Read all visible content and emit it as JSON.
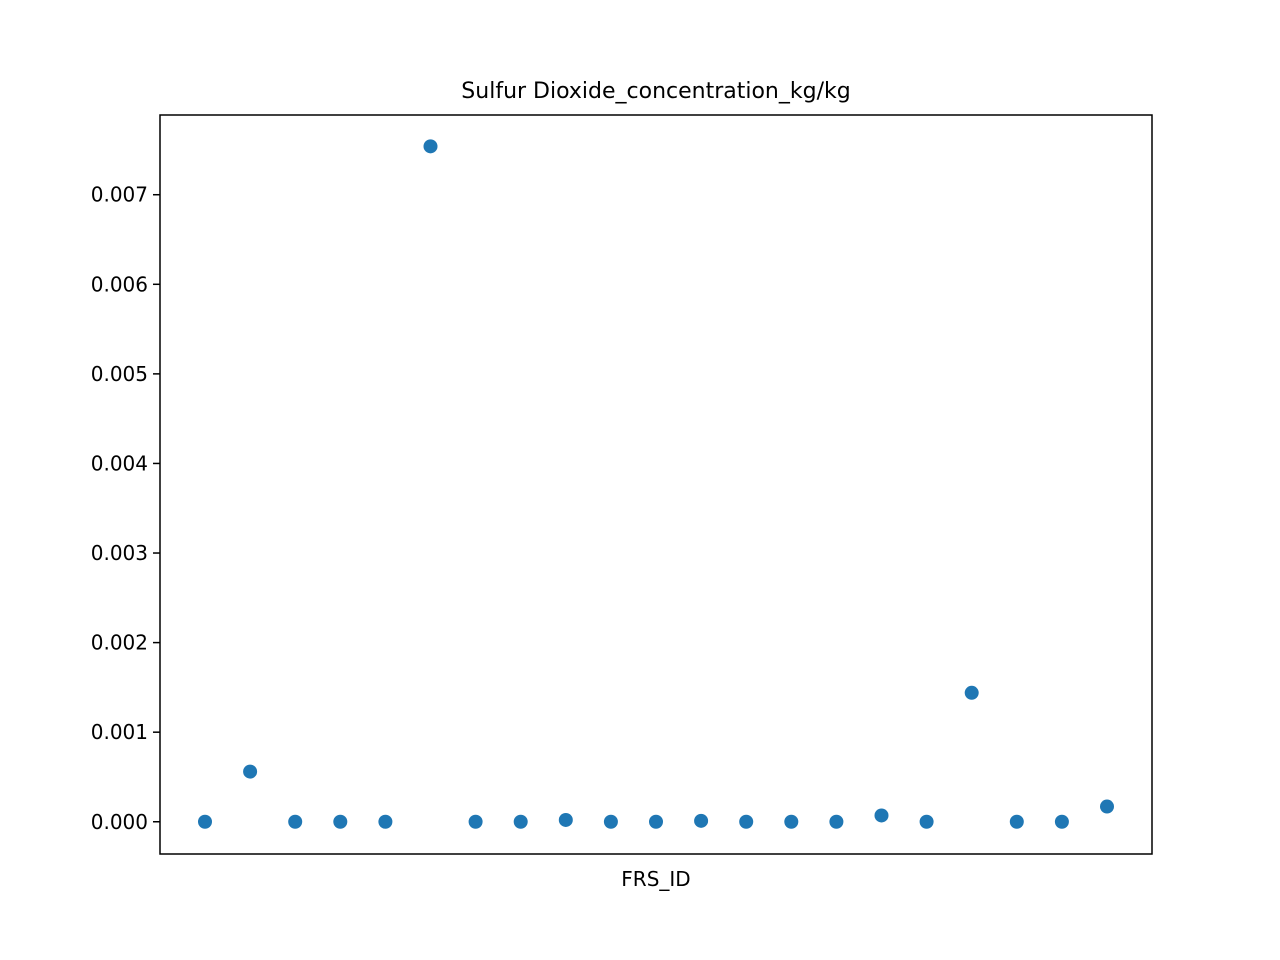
{
  "chart_data": {
    "type": "scatter",
    "title": "Sulfur Dioxide_concentration_kg/kg",
    "xlabel": "FRS_ID",
    "ylabel": "",
    "ylim": [
      -0.00036,
      0.00789
    ],
    "yticks": [
      0.0,
      0.001,
      0.002,
      0.003,
      0.004,
      0.005,
      0.006,
      0.007
    ],
    "ytick_labels": [
      "0.000",
      "0.001",
      "0.002",
      "0.003",
      "0.004",
      "0.005",
      "0.006",
      "0.007"
    ],
    "x_ticks_shown": false,
    "grid": false,
    "marker_color": "#1f77b4",
    "x": [
      0,
      1,
      2,
      3,
      4,
      5,
      6,
      7,
      8,
      9,
      10,
      11,
      12,
      13,
      14,
      15,
      16,
      17,
      18,
      19,
      20
    ],
    "values": [
      0.0,
      0.00056,
      0.0,
      0.0,
      0.0,
      0.00754,
      0.0,
      0.0,
      2e-05,
      0.0,
      0.0,
      1e-05,
      0.0,
      0.0,
      0.0,
      7e-05,
      0.0,
      0.00144,
      0.0,
      0.0,
      0.00017
    ]
  }
}
